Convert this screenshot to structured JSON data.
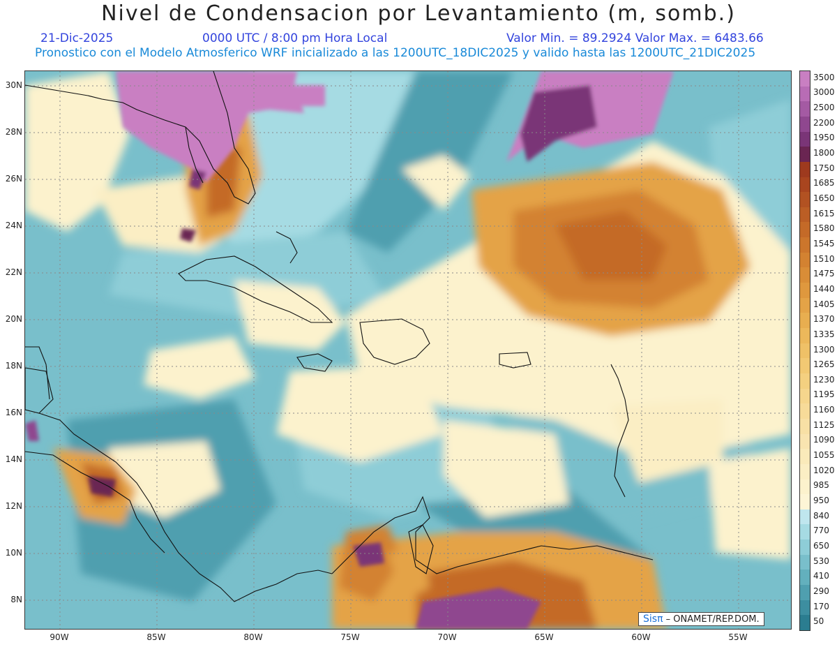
{
  "title": "Nivel de Condensacion por Levantamiento (m, somb.)",
  "header": {
    "date": "21-Dic-2025",
    "time": "0000 UTC / 8:00 pm Hora Local",
    "min_max": "Valor Min. = 89.2924  Valor Max. = 6483.66",
    "model_line": "Pronostico con el Modelo Atmosferico WRF inicializado a las 1200UTC_18DIC2025 y valido hasta las  1200UTC_21DIC2025"
  },
  "axes": {
    "lat_labels": [
      "30N",
      "28N",
      "26N",
      "24N",
      "22N",
      "20N",
      "18N",
      "16N",
      "14N",
      "12N",
      "10N",
      "8N"
    ],
    "lon_labels": [
      "90W",
      "85W",
      "80W",
      "75W",
      "70W",
      "65W",
      "60W",
      "55W"
    ]
  },
  "colorbar": {
    "levels": [
      "3500",
      "3000",
      "2500",
      "2200",
      "1950",
      "1800",
      "1750",
      "1685",
      "1650",
      "1615",
      "1580",
      "1545",
      "1510",
      "1475",
      "1440",
      "1405",
      "1370",
      "1335",
      "1300",
      "1265",
      "1230",
      "1195",
      "1160",
      "1125",
      "1090",
      "1055",
      "1020",
      "985",
      "950",
      "840",
      "770",
      "650",
      "530",
      "410",
      "290",
      "170",
      "50"
    ],
    "colors": [
      "#c97fc2",
      "#b86cb5",
      "#a45aa3",
      "#8f478f",
      "#7a3577",
      "#6a2552",
      "#9e3a1e",
      "#a9451f",
      "#b25222",
      "#bb5e25",
      "#c46a28",
      "#cc762c",
      "#d38231",
      "#d98d37",
      "#df983e",
      "#e4a347",
      "#e8ae50",
      "#ecb85b",
      "#efc167",
      "#f2c973",
      "#f4d080",
      "#f6d68d",
      "#f7db99",
      "#f8e0a5",
      "#f9e4b0",
      "#faeaba",
      "#fbeec4",
      "#fcf2cd",
      "#fdf5d6",
      "#bfe6ee",
      "#a6dbe3",
      "#8ecdd7",
      "#79bfcb",
      "#63b0bd",
      "#4f9faf",
      "#3d8ea0",
      "#2b7d90"
    ]
  },
  "credit": {
    "brand": "Sisπ",
    "text": " – ONAMET/REP.DOM."
  }
}
